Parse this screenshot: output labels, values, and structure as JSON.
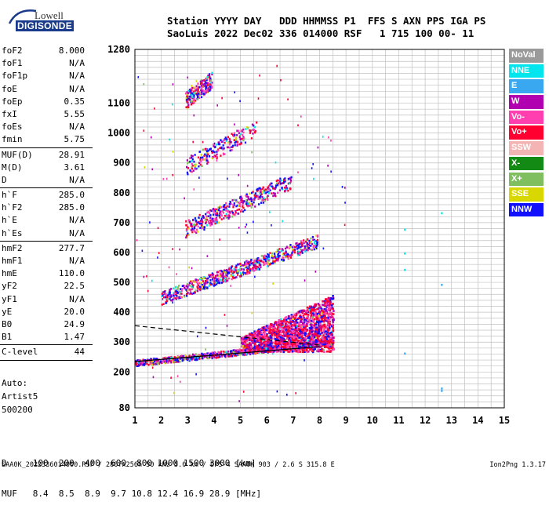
{
  "logo": {
    "top": "Lowell",
    "bottom": "DIGISONDE"
  },
  "header": {
    "line1": "Station YYYY DAY   DDD HHMMSS P1  FFS S AXN PPS IGA PS",
    "line2": "SaoLuis 2022 Dec02 336 014000 RSF   1 715 100 00- 11"
  },
  "params": [
    {
      "label": "foF2",
      "value": "8.000"
    },
    {
      "label": "foF1",
      "value": "N/A"
    },
    {
      "label": "foF1p",
      "value": "N/A"
    },
    {
      "label": "foE",
      "value": "N/A"
    },
    {
      "label": "foEp",
      "value": "0.35"
    },
    {
      "label": "fxI",
      "value": "5.55"
    },
    {
      "label": "foEs",
      "value": "N/A"
    },
    {
      "label": "fmin",
      "value": "5.75"
    },
    {
      "sep": true
    },
    {
      "label": "MUF(D)",
      "value": "28.91"
    },
    {
      "label": "M(D)",
      "value": "3.61"
    },
    {
      "label": "D",
      "value": "N/A"
    },
    {
      "sep": true
    },
    {
      "label": "h`F",
      "value": "285.0"
    },
    {
      "label": "h`F2",
      "value": "285.0"
    },
    {
      "label": "h`E",
      "value": "N/A"
    },
    {
      "label": "h`Es",
      "value": "N/A"
    },
    {
      "sep": true
    },
    {
      "label": "hmF2",
      "value": "277.7"
    },
    {
      "label": "hmF1",
      "value": "N/A"
    },
    {
      "label": "hmE",
      "value": "110.0"
    },
    {
      "label": "yF2",
      "value": "22.5"
    },
    {
      "label": "yF1",
      "value": "N/A"
    },
    {
      "label": "yE",
      "value": "20.0"
    },
    {
      "label": "B0",
      "value": "24.9"
    },
    {
      "label": "B1",
      "value": "1.47"
    },
    {
      "sep": true
    },
    {
      "label": "C-level",
      "value": "44"
    },
    {
      "sep": true
    }
  ],
  "auto": [
    "Auto:",
    "Artist5",
    "500200"
  ],
  "legend": [
    {
      "label": "NoVal",
      "color": "#9a9a9a"
    },
    {
      "label": "NNE",
      "color": "#00e5ee"
    },
    {
      "label": "E",
      "color": "#3aa8f0"
    },
    {
      "label": "W",
      "color": "#b000b0"
    },
    {
      "label": "Vo-",
      "color": "#ff3fb0"
    },
    {
      "label": "Vo+",
      "color": "#ff0030"
    },
    {
      "label": "SSW",
      "color": "#f4b4b4"
    },
    {
      "label": "X-",
      "color": "#138a13"
    },
    {
      "label": "X+",
      "color": "#7fbf60"
    },
    {
      "label": "SSE",
      "color": "#d8d800"
    },
    {
      "label": "NNW",
      "color": "#1010ff"
    }
  ],
  "dtable": {
    "row1": "D     100  200  400  600  800 1000 1500 3000 [km]",
    "row2": "MUF   8.4  8.5  8.9  9.7 10.8 12.4 16.9 28.9 [MHz]"
  },
  "footer": {
    "left": "SAA0K_2022336014000.RSF / 280fx256h 50 kHz 5.0 km / DPS-4 SAA0K 903 / 2.6 S 315.8 E",
    "right": "Ion2Png 1.3.17"
  },
  "chart_data": {
    "type": "scatter",
    "xlim": [
      1,
      15
    ],
    "ylim": [
      80,
      1280
    ],
    "xticks": [
      1,
      2,
      3,
      4,
      5,
      6,
      7,
      8,
      9,
      10,
      11,
      12,
      13,
      14,
      15
    ],
    "yticks": [
      80,
      200,
      300,
      400,
      500,
      600,
      700,
      800,
      900,
      1000,
      1100,
      1280
    ],
    "grid": true,
    "traces": [
      {
        "name": "F-trace 1st hop",
        "fmin": 1.0,
        "fmax": 8.3,
        "h0": 232,
        "h1": 300,
        "color_mix": "mixed"
      },
      {
        "name": "F-trace 2nd hop",
        "fmin": 2.0,
        "fmax": 7.9,
        "h0": 450,
        "h1": 640
      },
      {
        "name": "F-trace 3rd hop",
        "fmin": 2.9,
        "fmax": 6.9,
        "h0": 680,
        "h1": 840
      },
      {
        "name": "F-trace 4th hop",
        "fmin": 2.9,
        "fmax": 5.6,
        "h0": 890,
        "h1": 1020
      },
      {
        "name": "F-trace 5th hop",
        "fmin": 2.9,
        "fmax": 3.9,
        "h0": 1110,
        "h1": 1180
      }
    ],
    "spread_region": {
      "fmin": 5.0,
      "fmax": 8.5,
      "hmin": 270,
      "hmax": 450
    },
    "profile_solid": {
      "x": [
        1.0,
        8.0
      ],
      "y": [
        235,
        285
      ]
    },
    "profile_dashed": {
      "x": [
        1.0,
        8.0
      ],
      "y": [
        355,
        290
      ]
    }
  }
}
